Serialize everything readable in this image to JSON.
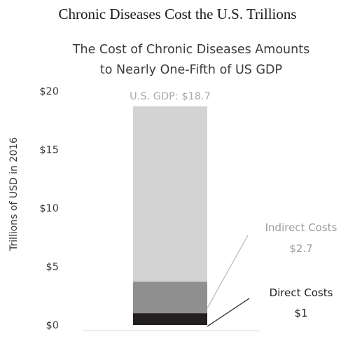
{
  "heading": "Chronic Diseases Cost the U.S. Trillions",
  "chart_data": {
    "type": "bar",
    "stacked": true,
    "title_lines": [
      "The Cost of Chronic Diseases Amounts",
      "to Nearly One-Fifth of US GDP"
    ],
    "ylabel": "Trillions of USD in 2016",
    "ylim": [
      0,
      20
    ],
    "yticks": [
      0,
      5,
      10,
      15,
      20
    ],
    "ytick_labels": [
      "$0",
      "$5",
      "$10",
      "$15",
      "$20"
    ],
    "grid": false,
    "series": [
      {
        "name": "Direct Costs",
        "value": 1,
        "color": "#231f20"
      },
      {
        "name": "Indirect Costs",
        "value": 2.7,
        "color": "#8f8f8f"
      },
      {
        "name": "U.S. GDP",
        "value": 18.7,
        "color": "#d3d3d3"
      }
    ],
    "annotations": {
      "gdp": "U.S. GDP: $18.7",
      "indirect": [
        "Indirect Costs",
        "$2.7"
      ],
      "direct": [
        "Direct Costs",
        "$1"
      ]
    }
  }
}
